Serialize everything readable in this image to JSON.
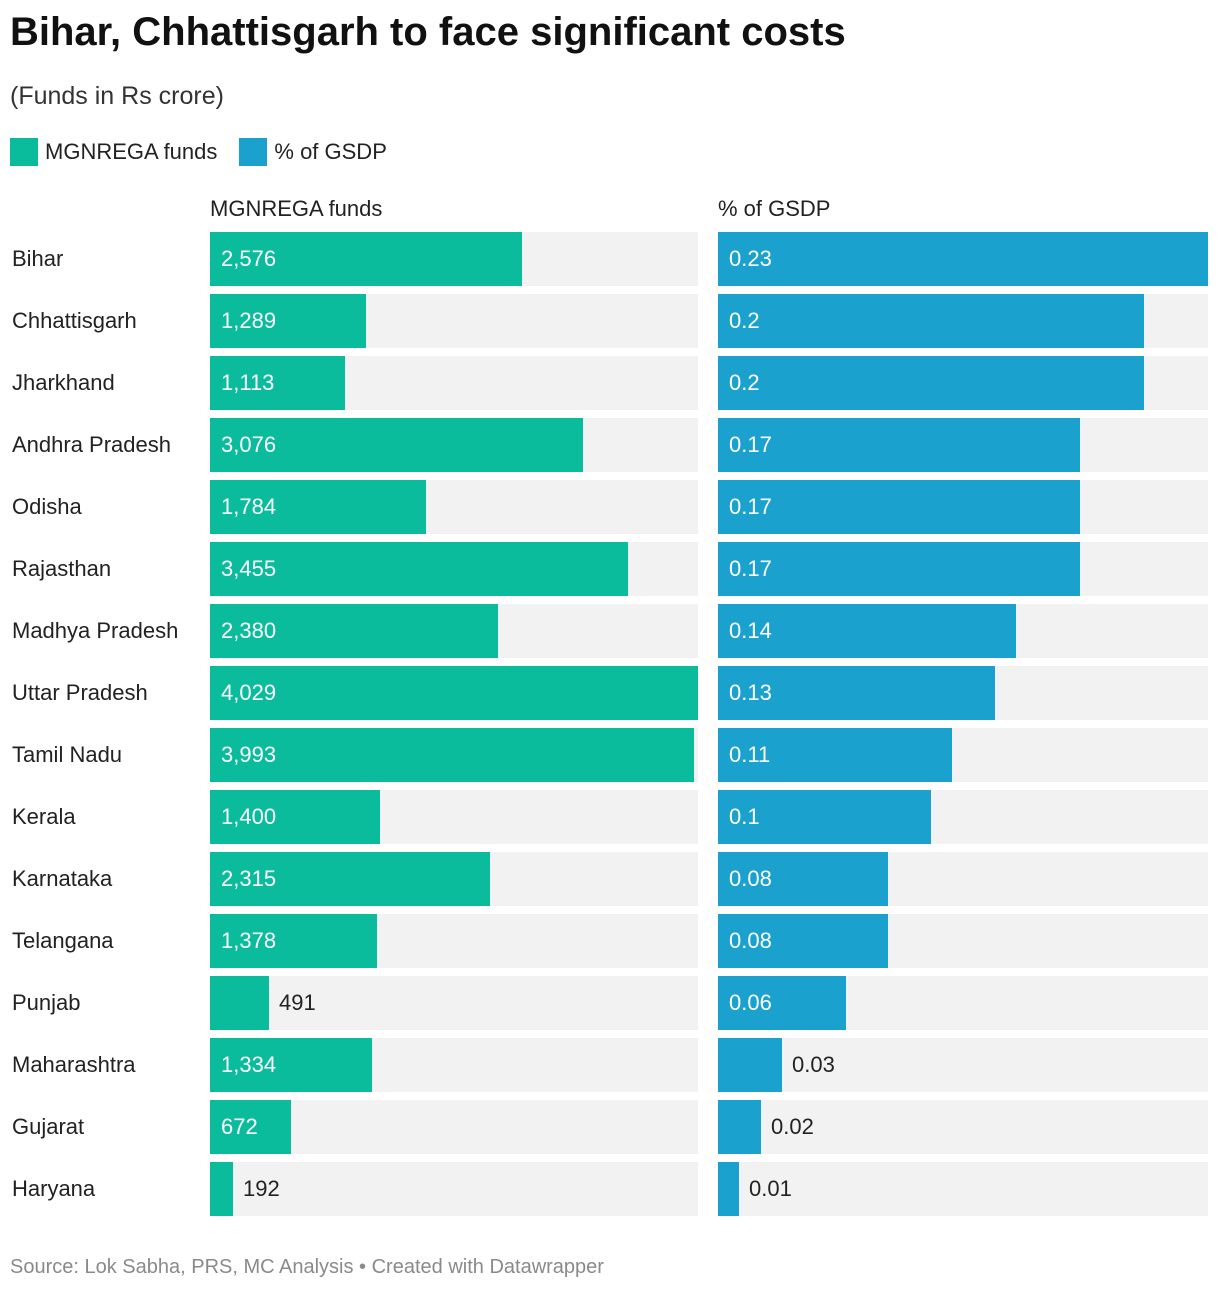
{
  "title": "Bihar, Chhattisgarh to face significant costs",
  "subtitle": "(Funds in Rs crore)",
  "legend": [
    {
      "label": "MGNREGA funds",
      "color": "#0bbc9c"
    },
    {
      "label": "% of GSDP",
      "color": "#1aa1ce"
    }
  ],
  "footer": "Source: Lok Sabha, PRS, MC Analysis • Created with Datawrapper",
  "chart_data": {
    "type": "bar",
    "orientation": "horizontal",
    "categories": [
      "Bihar",
      "Chhattisgarh",
      "Jharkhand",
      "Andhra Pradesh",
      "Odisha",
      "Rajasthan",
      "Madhya Pradesh",
      "Uttar Pradesh",
      "Tamil Nadu",
      "Kerala",
      "Karnataka",
      "Telangana",
      "Punjab",
      "Maharashtra",
      "Gujarat",
      "Haryana"
    ],
    "series": [
      {
        "name": "MGNREGA funds",
        "color": "#0bbc9c",
        "values": [
          2576,
          1289,
          1113,
          3076,
          1784,
          3455,
          2380,
          4029,
          3993,
          1400,
          2315,
          1378,
          491,
          1334,
          672,
          192
        ],
        "labels": [
          "2,576",
          "1,289",
          "1,113",
          "3,076",
          "1,784",
          "3,455",
          "2,380",
          "4,029",
          "3,993",
          "1,400",
          "2,315",
          "1,378",
          "491",
          "1,334",
          "672",
          "192"
        ],
        "xlim": [
          0,
          4029
        ]
      },
      {
        "name": "% of GSDP",
        "color": "#1aa1ce",
        "values": [
          0.23,
          0.2,
          0.2,
          0.17,
          0.17,
          0.17,
          0.14,
          0.13,
          0.11,
          0.1,
          0.08,
          0.08,
          0.06,
          0.03,
          0.02,
          0.01
        ],
        "labels": [
          "0.23",
          "0.2",
          "0.2",
          "0.17",
          "0.17",
          "0.17",
          "0.14",
          "0.13",
          "0.11",
          "0.1",
          "0.08",
          "0.08",
          "0.06",
          "0.03",
          "0.02",
          "0.01"
        ],
        "xlim": [
          0,
          0.23
        ]
      }
    ],
    "track_color": "#f2f2f2",
    "grid": false,
    "legend_position": "top-left"
  }
}
